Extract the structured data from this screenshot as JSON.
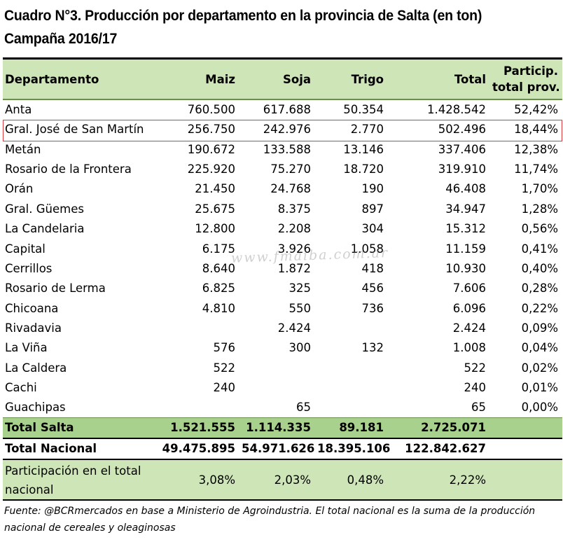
{
  "title_line1": "Cuadro N°3. Producción por departamento en la provincia de Salta (en ton)",
  "title_line2": "Campaña 2016/17",
  "headers": {
    "departamento": "Departamento",
    "maiz": "Maiz",
    "soja": "Soja",
    "trigo": "Trigo",
    "total": "Total",
    "particip_line1": "Particip.",
    "particip_line2": "total prov."
  },
  "rows": [
    {
      "name": "Anta",
      "maiz": "760.500",
      "soja": "617.688",
      "trigo": "50.354",
      "total": "1.428.542",
      "partic": "52,42%"
    },
    {
      "name": "Gral. José de San Martín",
      "maiz": "256.750",
      "soja": "242.976",
      "trigo": "2.770",
      "total": "502.496",
      "partic": "18,44%"
    },
    {
      "name": "Metán",
      "maiz": "190.672",
      "soja": "133.588",
      "trigo": "13.146",
      "total": "337.406",
      "partic": "12,38%"
    },
    {
      "name": "Rosario de la Frontera",
      "maiz": "225.920",
      "soja": "75.270",
      "trigo": "18.720",
      "total": "319.910",
      "partic": "11,74%"
    },
    {
      "name": "Orán",
      "maiz": "21.450",
      "soja": "24.768",
      "trigo": "190",
      "total": "46.408",
      "partic": "1,70%"
    },
    {
      "name": "Gral. Güemes",
      "maiz": "25.675",
      "soja": "8.375",
      "trigo": "897",
      "total": "34.947",
      "partic": "1,28%"
    },
    {
      "name": "La Candelaria",
      "maiz": "12.800",
      "soja": "2.208",
      "trigo": "304",
      "total": "15.312",
      "partic": "0,56%"
    },
    {
      "name": "Capital",
      "maiz": "6.175",
      "soja": "3.926",
      "trigo": "1.058",
      "total": "11.159",
      "partic": "0,41%"
    },
    {
      "name": "Cerrillos",
      "maiz": "8.640",
      "soja": "1.872",
      "trigo": "418",
      "total": "10.930",
      "partic": "0,40%"
    },
    {
      "name": "Rosario de Lerma",
      "maiz": "6.825",
      "soja": "325",
      "trigo": "456",
      "total": "7.606",
      "partic": "0,28%"
    },
    {
      "name": "Chicoana",
      "maiz": "4.810",
      "soja": "550",
      "trigo": "736",
      "total": "6.096",
      "partic": "0,22%"
    },
    {
      "name": "Rivadavia",
      "maiz": "",
      "soja": "2.424",
      "trigo": "",
      "total": "2.424",
      "partic": "0,09%"
    },
    {
      "name": "La Viña",
      "maiz": "576",
      "soja": "300",
      "trigo": "132",
      "total": "1.008",
      "partic": "0,04%"
    },
    {
      "name": "La Caldera",
      "maiz": "522",
      "soja": "",
      "trigo": "",
      "total": "522",
      "partic": "0,02%"
    },
    {
      "name": "Cachi",
      "maiz": "240",
      "soja": "",
      "trigo": "",
      "total": "240",
      "partic": "0,01%"
    },
    {
      "name": "Guachipas",
      "maiz": "",
      "soja": "65",
      "trigo": "",
      "total": "65",
      "partic": "0,00%"
    }
  ],
  "total_salta": {
    "name": "Total Salta",
    "maiz": "1.521.555",
    "soja": "1.114.335",
    "trigo": "89.181",
    "total": "2.725.071"
  },
  "total_nacional": {
    "name": "Total Nacional",
    "maiz": "49.475.895",
    "soja": "54.971.626",
    "trigo": "18.395.106",
    "total": "122.842.627"
  },
  "participacion": {
    "name": "Participación en el total nacional",
    "maiz": "3,08%",
    "soja": "2,03%",
    "trigo": "0,48%",
    "total": "2,22%"
  },
  "watermark": "www.fmaiba.com.ar",
  "footnote": "Fuente: @BCRmercados en base a Ministerio de Agroindustria. El total nacional es la suma de la producción nacional de cereales y oleaginosas",
  "colors": {
    "header_green": "#cde5b7",
    "total_green": "#a9d18e",
    "highlight_red": "#e23a3a"
  }
}
